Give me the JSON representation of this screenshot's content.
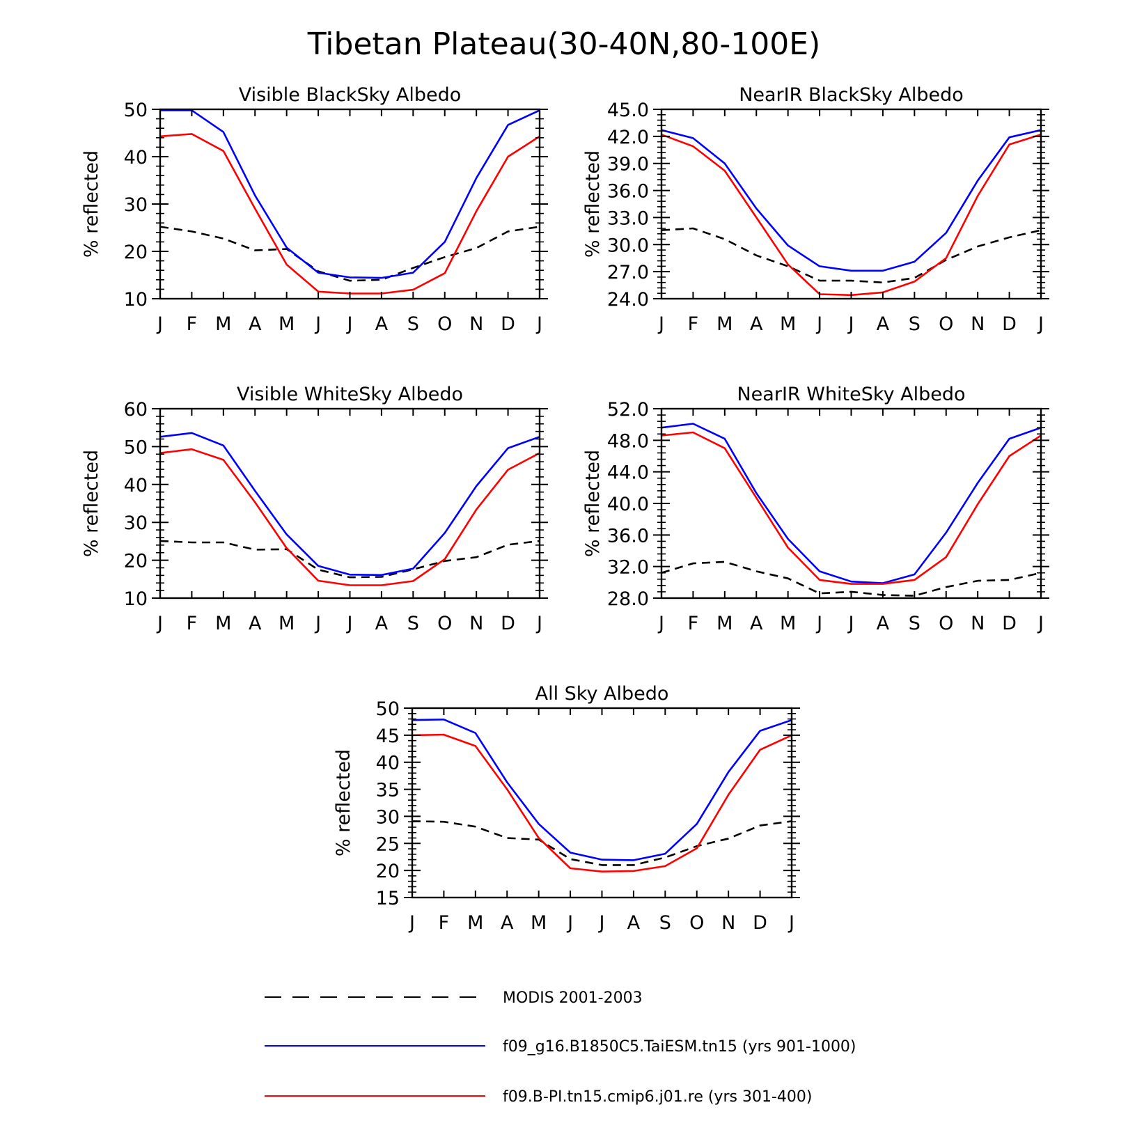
{
  "figure": {
    "title": "Tibetan Plateau(30-40N,80-100E)"
  },
  "legend": [
    {
      "label": "MODIS 2001-2003",
      "color": "#000000",
      "dash": true
    },
    {
      "label": "f09_g16.B1850C5.TaiESM.tn15 (yrs 901-1000)",
      "color": "#0000ff",
      "dash": false
    },
    {
      "label": "f09.B-PI.tn15.cmip6.j01.re (yrs 301-400)",
      "color": "#ff0000",
      "dash": false
    }
  ],
  "chart_data": [
    {
      "type": "line",
      "title": "Visible BlackSky Albedo",
      "ylabel": "% reflected",
      "x": [
        "J",
        "F",
        "M",
        "A",
        "M",
        "J",
        "J",
        "A",
        "S",
        "O",
        "N",
        "D",
        "J"
      ],
      "ylim": [
        10,
        50
      ],
      "yticks": [
        "10",
        "20",
        "30",
        "40",
        "50"
      ],
      "series": [
        {
          "name": "MODIS 2001-2003",
          "values": [
            25.2,
            24.2,
            22.7,
            20.2,
            20.5,
            15.8,
            13.8,
            14.0,
            16.5,
            18.8,
            20.7,
            24.2,
            25.2
          ]
        },
        {
          "name": "f09_g16.B1850C5.TaiESM.tn15 (yrs 901-1000)",
          "values": [
            49.8,
            49.8,
            45.2,
            31.8,
            20.8,
            15.5,
            14.5,
            14.4,
            15.5,
            22.0,
            35.5,
            46.7,
            49.8
          ]
        },
        {
          "name": "f09.B-PI.tn15.cmip6.j01.re (yrs 301-400)",
          "values": [
            44.3,
            44.8,
            41.2,
            29.0,
            17.2,
            11.5,
            11.1,
            11.1,
            11.9,
            15.4,
            28.5,
            40.0,
            44.3
          ]
        }
      ]
    },
    {
      "type": "line",
      "title": "NearIR BlackSky Albedo",
      "ylabel": "% reflected",
      "x": [
        "J",
        "F",
        "M",
        "A",
        "M",
        "J",
        "J",
        "A",
        "S",
        "O",
        "N",
        "D",
        "J"
      ],
      "ylim": [
        24,
        45
      ],
      "yticks": [
        "24.0",
        "27.0",
        "30.0",
        "33.0",
        "36.0",
        "39.0",
        "42.0",
        "45.0"
      ],
      "series": [
        {
          "name": "MODIS 2001-2003",
          "values": [
            31.6,
            31.8,
            30.6,
            28.8,
            27.6,
            26.0,
            26.0,
            25.8,
            26.3,
            28.3,
            29.8,
            30.8,
            31.6
          ]
        },
        {
          "name": "f09_g16.B1850C5.TaiESM.tn15 (yrs 901-1000)",
          "values": [
            42.7,
            41.8,
            39.0,
            34.0,
            29.9,
            27.6,
            27.1,
            27.1,
            28.1,
            31.3,
            37.1,
            41.9,
            42.7
          ]
        },
        {
          "name": "f09.B-PI.tn15.cmip6.j01.re (yrs 301-400)",
          "values": [
            42.2,
            40.9,
            38.2,
            33.0,
            27.8,
            24.5,
            24.4,
            24.7,
            25.9,
            28.5,
            35.4,
            41.1,
            42.2
          ]
        }
      ]
    },
    {
      "type": "line",
      "title": "Visible WhiteSky Albedo",
      "ylabel": "% reflected",
      "x": [
        "J",
        "F",
        "M",
        "A",
        "M",
        "J",
        "J",
        "A",
        "S",
        "O",
        "N",
        "D",
        "J"
      ],
      "ylim": [
        10,
        60
      ],
      "yticks": [
        "10",
        "20",
        "30",
        "40",
        "50",
        "60"
      ],
      "series": [
        {
          "name": "MODIS 2001-2003",
          "values": [
            25.1,
            24.7,
            24.7,
            22.8,
            22.9,
            17.5,
            15.5,
            15.6,
            17.6,
            19.8,
            20.8,
            24.1,
            25.1
          ]
        },
        {
          "name": "f09_g16.B1850C5.TaiESM.tn15 (yrs 901-1000)",
          "values": [
            52.6,
            53.6,
            50.3,
            38.3,
            26.8,
            18.5,
            16.2,
            16.1,
            17.8,
            27.2,
            39.6,
            49.6,
            52.6
          ]
        },
        {
          "name": "f09.B-PI.tn15.cmip6.j01.re (yrs 301-400)",
          "values": [
            48.3,
            49.3,
            46.5,
            35.3,
            23.2,
            14.6,
            13.4,
            13.4,
            14.5,
            20.3,
            33.4,
            43.9,
            48.3
          ]
        }
      ]
    },
    {
      "type": "line",
      "title": "NearIR WhiteSky Albedo",
      "ylabel": "% reflected",
      "x": [
        "J",
        "F",
        "M",
        "A",
        "M",
        "J",
        "J",
        "A",
        "S",
        "O",
        "N",
        "D",
        "J"
      ],
      "ylim": [
        28,
        52
      ],
      "yticks": [
        "28.0",
        "32.0",
        "36.0",
        "40.0",
        "44.0",
        "48.0",
        "52.0"
      ],
      "series": [
        {
          "name": "MODIS 2001-2003",
          "values": [
            31.2,
            32.4,
            32.6,
            31.4,
            30.5,
            28.6,
            28.8,
            28.4,
            28.3,
            29.4,
            30.2,
            30.3,
            31.2
          ]
        },
        {
          "name": "f09_g16.B1850C5.TaiESM.tn15 (yrs 901-1000)",
          "values": [
            49.6,
            50.1,
            48.2,
            41.3,
            35.5,
            31.4,
            30.1,
            29.9,
            31.0,
            36.3,
            42.6,
            48.2,
            49.6
          ]
        },
        {
          "name": "f09.B-PI.tn15.cmip6.j01.re (yrs 301-400)",
          "values": [
            48.6,
            49.0,
            47.0,
            40.7,
            34.4,
            30.3,
            29.8,
            29.8,
            30.3,
            33.2,
            39.9,
            46.0,
            48.6
          ]
        }
      ]
    },
    {
      "type": "line",
      "title": "All Sky Albedo",
      "ylabel": "% reflected",
      "x": [
        "J",
        "F",
        "M",
        "A",
        "M",
        "J",
        "J",
        "A",
        "S",
        "O",
        "N",
        "D",
        "J"
      ],
      "ylim": [
        15,
        50
      ],
      "yticks": [
        "15",
        "20",
        "25",
        "30",
        "35",
        "40",
        "45",
        "50"
      ],
      "series": [
        {
          "name": "MODIS 2001-2003",
          "values": [
            29.1,
            29.0,
            28.1,
            26.0,
            25.7,
            22.1,
            21.0,
            21.0,
            22.4,
            24.5,
            25.9,
            28.3,
            29.1
          ]
        },
        {
          "name": "f09_g16.B1850C5.TaiESM.tn15 (yrs 901-1000)",
          "values": [
            47.8,
            47.9,
            45.4,
            36.3,
            28.6,
            23.3,
            22.0,
            21.9,
            23.1,
            28.6,
            38.2,
            45.8,
            47.8
          ]
        },
        {
          "name": "f09.B-PI.tn15.cmip6.j01.re (yrs 301-400)",
          "values": [
            45.0,
            45.1,
            43.0,
            35.0,
            26.0,
            20.4,
            19.8,
            19.9,
            20.8,
            24.1,
            34.0,
            42.3,
            45.0
          ]
        }
      ]
    }
  ]
}
